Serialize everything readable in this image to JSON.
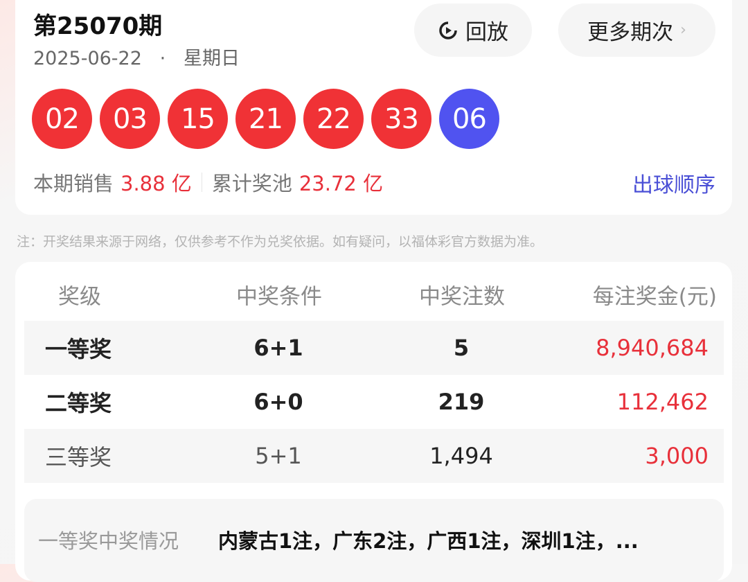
{
  "header": {
    "issue": "第25070期",
    "date": "2025-06-22",
    "separator": "·",
    "weekday": "星期日",
    "replay_label": "回放",
    "more_label": "更多期次",
    "more_chevron": "›"
  },
  "balls": {
    "red": [
      "02",
      "03",
      "15",
      "21",
      "22",
      "33"
    ],
    "blue": [
      "06"
    ],
    "red_color": "#f03236",
    "blue_color": "#5053f0"
  },
  "stats": {
    "sales_label": "本期销售",
    "sales_value": "3.88 亿",
    "pool_label": "累计奖池",
    "pool_value": "23.72 亿",
    "order_link": "出球顺序"
  },
  "note": "注：开奖结果来源于网络，仅供参考不作为兑奖依据。如有疑问，以福体彩官方数据为准。",
  "table": {
    "headers": [
      "奖级",
      "中奖条件",
      "中奖注数",
      "每注奖金(元)"
    ],
    "rows": [
      {
        "level": "一等奖",
        "condition": "6+1",
        "count": "5",
        "amount": "8,940,684"
      },
      {
        "level": "二等奖",
        "condition": "6+0",
        "count": "219",
        "amount": "112,462"
      },
      {
        "level": "三等奖",
        "condition": "5+1",
        "count": "1,494",
        "amount": "3,000"
      }
    ]
  },
  "first_prize": {
    "label": "一等奖中奖情况",
    "detail": "内蒙古1注，广东2注，广西1注，深圳1注，..."
  }
}
